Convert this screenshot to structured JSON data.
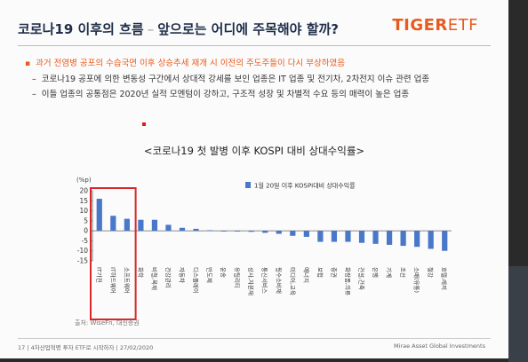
{
  "header": {
    "title_main": "코로나19 이후의 흐름",
    "title_sep": "–",
    "title_question": "앞으로는 어디에 주목해야 할까?",
    "logo_tiger": "TIGER",
    "logo_etf": "ETF"
  },
  "bullets": {
    "main": "과거 전염병 공포의 수습국면 이후 상승추세 재개 시 이전의 주도주들이 다시 부상하였음",
    "sub1": "코로나19 공포에 의한 변동성 구간에서 상대적 강세를 보인 업종은 IT 업종 및 전기차, 2차전지 이슈 관련 업종",
    "sub2": "이들 업종의 공통점은 2020년 실적 모멘텀이 강하고, 구조적 성장 및 차별적 수요 등의 매력이 높은 업종"
  },
  "chart_title": "<코로나19 첫 발병 이후 KOSPI 대비 상대수익률>",
  "chart_data": {
    "type": "bar",
    "ylabel": "(%p)",
    "ylim": [
      -15,
      20
    ],
    "yticks": [
      20,
      15,
      10,
      5,
      0,
      -5,
      -10,
      -15
    ],
    "categories": [
      "IT가전",
      "IT하드웨어",
      "소프트웨어",
      "화학",
      "비철,목재",
      "건강관리",
      "자동차",
      "디스플레이",
      "반도체",
      "운송",
      "유틸리티",
      "상사,자본재",
      "통신서비스",
      "필수소비재",
      "미디어,교육",
      "에너지",
      "보험",
      "증권",
      "화장품,의류",
      "건설,건축",
      "은행",
      "기계",
      "조선",
      "소매(유통)",
      "철강",
      "호텔,레저"
    ],
    "series": [
      {
        "name": "1월 20일 이후 KOSPI대비 상대수익률",
        "color": "#4a78c8",
        "values": [
          16,
          7.5,
          6,
          5.5,
          5.5,
          3,
          1.5,
          1,
          0.3,
          -0.2,
          -0.3,
          -0.5,
          -1,
          -1.5,
          -2.5,
          -3,
          -5.5,
          -5.5,
          -5.5,
          -6,
          -6.5,
          -7,
          -7.5,
          -8,
          -9,
          -10
        ]
      }
    ],
    "highlight": {
      "first_index": 0,
      "last_index": 2,
      "color": "#d8262a"
    },
    "legend_position": "top-right",
    "grid": false
  },
  "source": "출처: WiseFn, 대신증권",
  "footer": {
    "left": "17 | 4차산업혁명 투자 ETF로 시작하자 | 27/02/2020",
    "right": "Mirae Asset Global Investments"
  }
}
